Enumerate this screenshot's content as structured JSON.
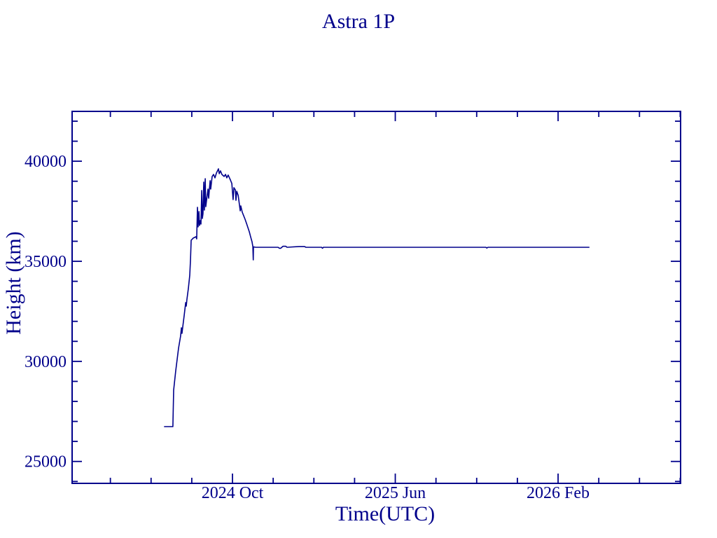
{
  "chart_data": {
    "type": "line",
    "title": "Astra 1P",
    "xlabel": "Time(UTC)",
    "ylabel": "Height (km)",
    "accent_color": "#00008B",
    "background_color": "#ffffff",
    "grid": false,
    "legend": "none",
    "x_unit": "months since 2024-01-01 (e.g. 9 = 2024 Oct 1)",
    "y_unit": "km",
    "xlim": [
      1.12,
      31.02
    ],
    "ylim": [
      23905,
      42490
    ],
    "x_major_ticks": [
      {
        "m": 9,
        "label": "2024 Oct"
      },
      {
        "m": 17,
        "label": "2025 Jun"
      },
      {
        "m": 25,
        "label": "2026 Feb"
      }
    ],
    "x_minor_ticks": [
      3,
      5,
      7,
      11,
      13,
      15,
      19,
      21,
      23,
      27,
      29,
      31
    ],
    "y_major_ticks": [
      {
        "v": 25000,
        "label": "25000"
      },
      {
        "v": 30000,
        "label": "30000"
      },
      {
        "v": 35000,
        "label": "35000"
      },
      {
        "v": 40000,
        "label": "40000"
      }
    ],
    "y_minor_ticks": [
      24000,
      26000,
      27000,
      28000,
      29000,
      31000,
      32000,
      33000,
      34000,
      36000,
      37000,
      38000,
      39000,
      41000,
      42000
    ],
    "series": [
      {
        "name": "height",
        "color": "#00008B",
        "points": [
          [
            5.66,
            26740
          ],
          [
            6.07,
            26740
          ],
          [
            6.11,
            28560
          ],
          [
            6.21,
            29510
          ],
          [
            6.35,
            30660
          ],
          [
            6.45,
            31260
          ],
          [
            6.49,
            31680
          ],
          [
            6.52,
            31400
          ],
          [
            6.56,
            31750
          ],
          [
            6.63,
            32310
          ],
          [
            6.7,
            32940
          ],
          [
            6.73,
            32760
          ],
          [
            6.76,
            33080
          ],
          [
            6.83,
            33640
          ],
          [
            6.9,
            34300
          ],
          [
            6.94,
            35110
          ],
          [
            6.97,
            36050
          ],
          [
            7.07,
            36160
          ],
          [
            7.21,
            36230
          ],
          [
            7.24,
            36120
          ],
          [
            7.28,
            37700
          ],
          [
            7.31,
            36720
          ],
          [
            7.35,
            37490
          ],
          [
            7.38,
            36790
          ],
          [
            7.42,
            37030
          ],
          [
            7.45,
            36860
          ],
          [
            7.49,
            38540
          ],
          [
            7.52,
            37140
          ],
          [
            7.55,
            37380
          ],
          [
            7.59,
            38960
          ],
          [
            7.62,
            37560
          ],
          [
            7.66,
            39130
          ],
          [
            7.69,
            37730
          ],
          [
            7.73,
            38080
          ],
          [
            7.8,
            38610
          ],
          [
            7.83,
            38150
          ],
          [
            7.9,
            39030
          ],
          [
            7.93,
            38610
          ],
          [
            8.0,
            39240
          ],
          [
            8.07,
            39340
          ],
          [
            8.14,
            39170
          ],
          [
            8.21,
            39410
          ],
          [
            8.31,
            39620
          ],
          [
            8.35,
            39380
          ],
          [
            8.41,
            39520
          ],
          [
            8.48,
            39340
          ],
          [
            8.59,
            39240
          ],
          [
            8.66,
            39340
          ],
          [
            8.72,
            39170
          ],
          [
            8.79,
            39310
          ],
          [
            8.9,
            39060
          ],
          [
            8.97,
            38890
          ],
          [
            9.03,
            38080
          ],
          [
            9.07,
            38680
          ],
          [
            9.14,
            38570
          ],
          [
            9.17,
            38050
          ],
          [
            9.21,
            38500
          ],
          [
            9.28,
            38290
          ],
          [
            9.34,
            37840
          ],
          [
            9.38,
            37520
          ],
          [
            9.41,
            37770
          ],
          [
            9.48,
            37450
          ],
          [
            9.55,
            37280
          ],
          [
            9.62,
            37100
          ],
          [
            9.69,
            36890
          ],
          [
            9.76,
            36680
          ],
          [
            9.83,
            36470
          ],
          [
            9.89,
            36230
          ],
          [
            9.96,
            35980
          ],
          [
            10.0,
            35740
          ],
          [
            10.02,
            35070
          ],
          [
            10.03,
            35720
          ],
          [
            10.14,
            35700
          ],
          [
            11.24,
            35700
          ],
          [
            11.31,
            35650
          ],
          [
            11.37,
            35650
          ],
          [
            11.48,
            35750
          ],
          [
            11.62,
            35750
          ],
          [
            11.68,
            35700
          ],
          [
            12.27,
            35740
          ],
          [
            12.54,
            35740
          ],
          [
            12.61,
            35700
          ],
          [
            13.38,
            35700
          ],
          [
            13.42,
            35650
          ],
          [
            13.47,
            35700
          ],
          [
            21.45,
            35700
          ],
          [
            21.5,
            35660
          ],
          [
            21.55,
            35700
          ],
          [
            26.52,
            35700
          ]
        ]
      }
    ]
  }
}
